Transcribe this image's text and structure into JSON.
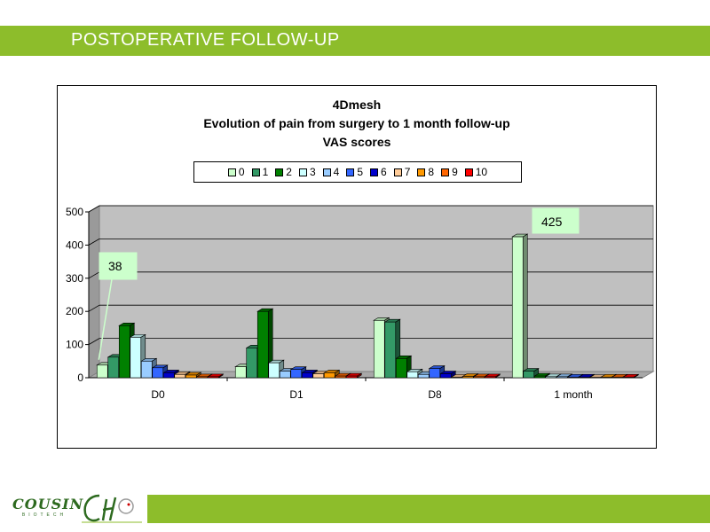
{
  "header": {
    "title": "POSTOPERATIVE FOLLOW-UP"
  },
  "colors": {
    "accent": "#8dbd2b",
    "series": [
      "#ccffcc",
      "#339966",
      "#008000",
      "#ccffff",
      "#99ccff",
      "#3366ff",
      "#0000cc",
      "#ffcc99",
      "#ff9900",
      "#ff6600",
      "#ff0000"
    ]
  },
  "logos": {
    "cousin_name": "COUSIN",
    "cousin_sub": "BIOTECH"
  },
  "chart_data": {
    "type": "bar",
    "title_lines": [
      "4Dmesh",
      "Evolution of pain from surgery to  1 month follow-up",
      "VAS scores"
    ],
    "categories": [
      "D0",
      "D1",
      "D8",
      "1 month"
    ],
    "ylim": [
      0,
      500
    ],
    "yticks": [
      0,
      100,
      200,
      300,
      400,
      500
    ],
    "grid": true,
    "legend_position": "top",
    "series": [
      {
        "name": "0",
        "values": [
          38,
          33,
          173,
          425
        ]
      },
      {
        "name": "1",
        "values": [
          62,
          90,
          168,
          20
        ]
      },
      {
        "name": "2",
        "values": [
          157,
          200,
          58,
          5
        ]
      },
      {
        "name": "3",
        "values": [
          122,
          45,
          18,
          3
        ]
      },
      {
        "name": "4",
        "values": [
          50,
          20,
          10,
          3
        ]
      },
      {
        "name": "5",
        "values": [
          30,
          25,
          28,
          2
        ]
      },
      {
        "name": "6",
        "values": [
          15,
          15,
          12,
          2
        ]
      },
      {
        "name": "7",
        "values": [
          10,
          12,
          2,
          1
        ]
      },
      {
        "name": "8",
        "values": [
          8,
          15,
          4,
          2
        ]
      },
      {
        "name": "9",
        "values": [
          3,
          5,
          3,
          2
        ]
      },
      {
        "name": "10",
        "values": [
          3,
          5,
          3,
          2
        ]
      }
    ],
    "annotations": [
      {
        "text": "38",
        "category": "D0",
        "series": "0"
      },
      {
        "text": "425",
        "category": "1 month",
        "series": "0"
      }
    ]
  }
}
